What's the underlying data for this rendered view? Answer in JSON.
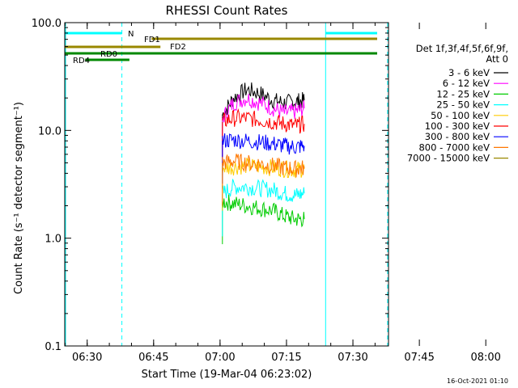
{
  "chart_data": {
    "type": "line",
    "title": "RHESSI Count Rates",
    "xlabel": "Start Time (19-Mar-04 06:23:02)",
    "ylabel": "Count Rate (s⁻¹ detector segment⁻¹)",
    "y_scale": "log",
    "ylim": [
      0.1,
      100.0
    ],
    "x_ticks": [
      "06:30",
      "06:45",
      "07:00",
      "07:15",
      "07:30",
      "07:45",
      "08:00"
    ],
    "y_ticks": [
      "0.1",
      "1.0",
      "10.0",
      "100.0"
    ],
    "footer_date": "16-Oct-2021 01:10",
    "legend": {
      "placement": "right",
      "header_lines": [
        "Det 1f,3f,4f,5f,6f,9f,",
        "Att 0"
      ]
    },
    "series": [
      {
        "name": "3 - 6 keV",
        "color": "#000000",
        "values": [
          14.0,
          20.0,
          24.0,
          22.0,
          19.0,
          18.0,
          18.5,
          19.0
        ]
      },
      {
        "name": "6 - 12 keV",
        "color": "#ff00ff",
        "values": [
          13.0,
          18.0,
          20.0,
          18.0,
          16.0,
          14.5,
          15.0,
          16.0
        ]
      },
      {
        "name": "12 - 25 keV",
        "color": "#00cc00",
        "values": [
          2.2,
          2.1,
          2.0,
          1.9,
          1.8,
          1.6,
          1.5,
          1.5
        ]
      },
      {
        "name": "25 - 50 keV",
        "color": "#00ffff",
        "values": [
          2.6,
          3.0,
          3.0,
          2.9,
          2.8,
          2.6,
          2.5,
          2.6
        ]
      },
      {
        "name": "50 - 100 keV",
        "color": "#ffcc00",
        "values": [
          4.5,
          4.6,
          4.7,
          4.6,
          4.5,
          4.4,
          4.3,
          4.4
        ]
      },
      {
        "name": "100 - 300 keV",
        "color": "#ff0000",
        "values": [
          12.0,
          13.0,
          13.0,
          12.5,
          12.0,
          11.5,
          11.0,
          11.5
        ]
      },
      {
        "name": "300 - 800 keV",
        "color": "#0000ff",
        "values": [
          8.0,
          8.2,
          8.0,
          7.8,
          7.5,
          7.2,
          7.0,
          7.2
        ]
      },
      {
        "name": "800 - 7000 keV",
        "color": "#ff7700",
        "values": [
          5.0,
          5.2,
          5.0,
          4.9,
          4.7,
          4.5,
          4.4,
          4.5
        ]
      },
      {
        "name": "7000 - 15000 keV",
        "color": "#998800",
        "values": []
      }
    ],
    "x_minutes": [
      37.5,
      40,
      43,
      46,
      49,
      51.5,
      54,
      56
    ],
    "bars": [
      {
        "label": "N",
        "color": "#00ffff",
        "segments": [
          [
            0,
            14.8
          ],
          [
            60.8,
            74.8
          ]
        ]
      },
      {
        "label": "FD1",
        "color": "#998800",
        "segments": [
          [
            21.5,
            75
          ]
        ]
      },
      {
        "label": "FD2",
        "color": "#998800",
        "segments": [
          [
            0,
            23.5
          ]
        ]
      },
      {
        "label": "RD0",
        "color": "#008800",
        "segments": [
          [
            0,
            75
          ]
        ]
      },
      {
        "label": "RD4",
        "color": "#008800",
        "segments": [
          [
            6.5,
            16.5
          ]
        ]
      }
    ],
    "vlines": [
      {
        "minute": 14.8,
        "color": "#00ffff",
        "style": "dashed"
      },
      {
        "minute": 60.8,
        "color": "#00ffff",
        "style": "solid"
      },
      {
        "minute": 74.8,
        "color": "#00ffff",
        "style": "dashed"
      }
    ]
  }
}
